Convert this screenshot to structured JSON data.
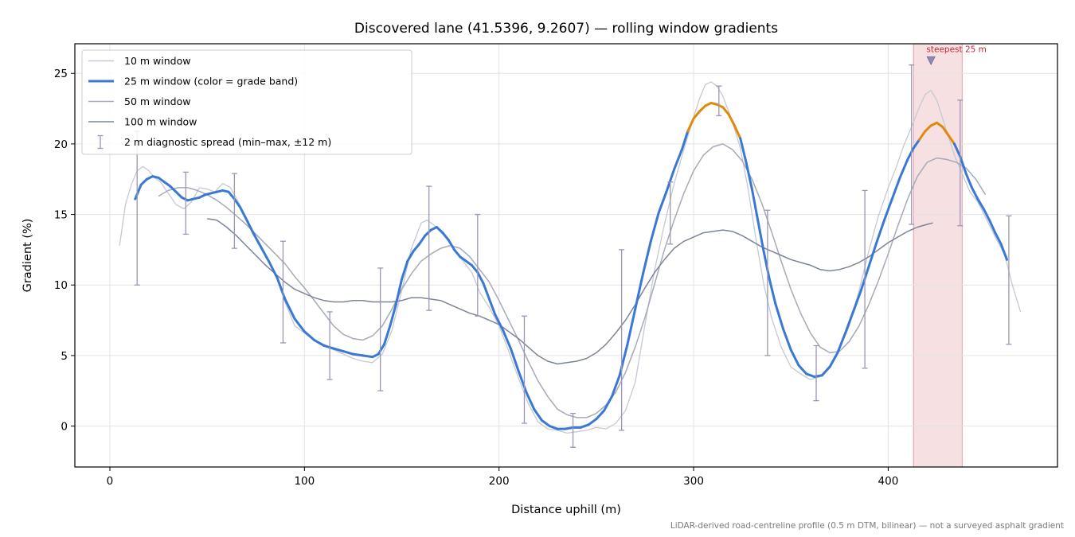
{
  "chart_data": {
    "type": "line",
    "title": "Discovered lane (41.5396, 9.2607) — rolling window gradients",
    "xlabel": "Distance uphill (m)",
    "ylabel": "Gradient (%)",
    "xlim": [
      -18,
      487
    ],
    "ylim": [
      -2.9,
      27.1
    ],
    "xticks": [
      0,
      100,
      200,
      300,
      400
    ],
    "yticks": [
      0,
      5,
      10,
      15,
      20,
      25
    ],
    "grid": true,
    "legend_position": "top-left",
    "footnote": "LiDAR-derived road-centreline profile (0.5 m DTM, bilinear) — not a surveyed asphalt gradient",
    "highlight": {
      "label": "steepest 25 m",
      "x_range": [
        413,
        438
      ],
      "marker": {
        "x": 422,
        "y": 25.9
      }
    },
    "grade_band_colors": {
      "normal": "#3a78d4",
      "steep": "#e08a0b",
      "threshold": 20
    },
    "series": [
      {
        "name": "10 m window",
        "color": "#c5c9d3",
        "x": [
          5,
          8,
          11,
          14,
          17,
          20,
          23,
          26,
          30,
          34,
          38,
          42,
          46,
          50,
          54,
          58,
          62,
          66,
          70,
          75,
          80,
          85,
          90,
          95,
          100,
          105,
          110,
          115,
          120,
          125,
          130,
          135,
          140,
          145,
          150,
          155,
          160,
          163,
          166,
          170,
          174,
          178,
          182,
          186,
          190,
          195,
          200,
          205,
          210,
          215,
          220,
          225,
          230,
          235,
          240,
          245,
          250,
          255,
          260,
          265,
          270,
          275,
          280,
          285,
          290,
          295,
          300,
          303,
          306,
          309,
          312,
          315,
          318,
          321,
          324,
          328,
          332,
          336,
          340,
          345,
          350,
          355,
          360,
          365,
          370,
          375,
          380,
          385,
          390,
          395,
          400,
          404,
          408,
          412,
          416,
          419,
          422,
          425,
          428,
          431,
          434,
          438,
          442,
          446,
          450,
          455,
          460,
          464,
          468
        ],
        "y": [
          12.8,
          15.7,
          17.1,
          18.1,
          18.4,
          18.1,
          17.6,
          17.3,
          16.5,
          15.7,
          15.4,
          15.9,
          16.9,
          16.8,
          16.6,
          17.2,
          16.9,
          15.9,
          14.7,
          13.4,
          12.1,
          10.8,
          8.8,
          7.1,
          6.6,
          6.1,
          5.8,
          5.4,
          5.1,
          4.8,
          4.6,
          4.5,
          5.1,
          6.8,
          9.6,
          12.6,
          14.4,
          14.6,
          14.3,
          13.9,
          13.1,
          12.3,
          11.6,
          10.9,
          9.5,
          8.4,
          7.1,
          5.3,
          3.4,
          1.6,
          0.3,
          -0.2,
          -0.3,
          -0.5,
          -0.4,
          -0.3,
          -0.1,
          -0.2,
          0.2,
          1.1,
          3.1,
          7.2,
          11.1,
          14.3,
          17.2,
          19.6,
          21.9,
          23.2,
          24.2,
          24.4,
          24.1,
          23.4,
          22.3,
          21.1,
          19.7,
          16.8,
          13.3,
          10.1,
          7.7,
          5.6,
          4.2,
          3.7,
          3.3,
          3.5,
          4.3,
          5.5,
          7.1,
          9.6,
          12.4,
          14.9,
          16.9,
          18.3,
          19.9,
          21.2,
          22.6,
          23.5,
          23.8,
          23.1,
          21.8,
          20.5,
          19.2,
          17.9,
          16.6,
          15.9,
          14.8,
          13.4,
          12.1,
          9.9,
          8.1
        ]
      },
      {
        "name": "25 m window (color = grade band)",
        "color": "#3a78d4",
        "x": [
          13,
          16,
          19,
          22,
          25,
          28,
          31,
          34,
          37,
          40,
          43,
          46,
          49,
          52,
          55,
          58,
          61,
          64,
          67,
          70,
          74,
          78,
          82,
          86,
          90,
          95,
          100,
          105,
          110,
          115,
          120,
          125,
          130,
          135,
          138,
          141,
          144,
          147,
          150,
          153,
          156,
          159,
          162,
          165,
          168,
          171,
          174,
          177,
          180,
          183,
          186,
          189,
          192,
          195,
          198,
          202,
          206,
          210,
          214,
          218,
          222,
          226,
          230,
          234,
          238,
          242,
          246,
          250,
          254,
          258,
          262,
          266,
          270,
          274,
          278,
          282,
          286,
          290,
          294,
          297,
          300,
          303,
          306,
          309,
          312,
          315,
          318,
          321,
          324,
          327,
          330,
          333,
          336,
          339,
          342,
          346,
          350,
          354,
          358,
          362,
          366,
          370,
          374,
          378,
          382,
          386,
          390,
          394,
          398,
          402,
          406,
          410,
          413,
          416,
          419,
          422,
          425,
          428,
          431,
          434,
          437,
          440,
          443,
          446,
          449,
          452,
          455,
          458,
          461
        ],
        "y": [
          16.1,
          17.1,
          17.5,
          17.7,
          17.6,
          17.3,
          17.0,
          16.6,
          16.2,
          16.0,
          16.1,
          16.2,
          16.4,
          16.5,
          16.6,
          16.7,
          16.6,
          16.1,
          15.5,
          14.7,
          13.6,
          12.6,
          11.6,
          10.5,
          9.0,
          7.6,
          6.7,
          6.1,
          5.7,
          5.5,
          5.3,
          5.1,
          5.0,
          4.9,
          5.1,
          5.8,
          7.1,
          8.6,
          10.4,
          11.7,
          12.4,
          12.9,
          13.5,
          13.9,
          14.1,
          13.7,
          13.2,
          12.5,
          12.0,
          11.7,
          11.4,
          10.9,
          10.1,
          9.0,
          7.9,
          6.8,
          5.5,
          3.9,
          2.4,
          1.2,
          0.4,
          0.0,
          -0.2,
          -0.2,
          -0.1,
          -0.1,
          0.1,
          0.5,
          1.1,
          2.1,
          3.6,
          5.8,
          8.3,
          10.8,
          13.1,
          15.1,
          16.6,
          18.2,
          19.6,
          20.9,
          21.8,
          22.3,
          22.7,
          22.9,
          22.8,
          22.6,
          22.1,
          21.3,
          20.4,
          18.7,
          16.8,
          14.6,
          12.4,
          10.4,
          8.7,
          6.9,
          5.4,
          4.3,
          3.7,
          3.5,
          3.6,
          4.2,
          5.2,
          6.6,
          8.1,
          9.6,
          11.3,
          13.0,
          14.6,
          16.1,
          17.6,
          18.9,
          19.7,
          20.3,
          20.9,
          21.3,
          21.5,
          21.2,
          20.6,
          20.0,
          19.1,
          17.9,
          16.9,
          16.1,
          15.4,
          14.6,
          13.7,
          12.9,
          11.8
        ]
      },
      {
        "name": "50 m window",
        "color": "#a3aab8",
        "x": [
          25,
          30,
          35,
          40,
          45,
          50,
          55,
          60,
          65,
          70,
          75,
          80,
          85,
          90,
          95,
          100,
          105,
          110,
          115,
          120,
          125,
          130,
          135,
          140,
          145,
          150,
          155,
          160,
          165,
          170,
          175,
          180,
          185,
          190,
          195,
          200,
          205,
          210,
          215,
          220,
          225,
          230,
          235,
          240,
          245,
          250,
          255,
          260,
          265,
          270,
          275,
          280,
          285,
          290,
          295,
          300,
          305,
          310,
          315,
          320,
          325,
          330,
          335,
          340,
          345,
          350,
          355,
          360,
          365,
          370,
          375,
          380,
          385,
          390,
          395,
          400,
          405,
          410,
          415,
          420,
          425,
          430,
          435,
          440,
          445,
          450
        ],
        "y": [
          16.3,
          16.7,
          16.9,
          16.9,
          16.7,
          16.4,
          16.0,
          15.5,
          14.9,
          14.3,
          13.6,
          12.9,
          12.2,
          11.5,
          10.6,
          9.8,
          8.9,
          8.0,
          7.1,
          6.5,
          6.2,
          6.1,
          6.4,
          7.1,
          8.3,
          9.7,
          10.8,
          11.7,
          12.2,
          12.6,
          12.8,
          12.6,
          12.0,
          11.1,
          10.2,
          8.9,
          7.5,
          6.1,
          4.6,
          3.2,
          2.1,
          1.2,
          0.8,
          0.6,
          0.6,
          0.9,
          1.5,
          2.4,
          3.8,
          5.6,
          7.7,
          10.1,
          12.5,
          14.6,
          16.5,
          18.1,
          19.2,
          19.8,
          20.0,
          19.6,
          18.8,
          17.5,
          15.8,
          13.8,
          11.7,
          9.7,
          8.0,
          6.6,
          5.6,
          5.2,
          5.3,
          6.0,
          7.1,
          8.6,
          10.3,
          12.2,
          14.2,
          16.1,
          17.7,
          18.7,
          19.0,
          18.9,
          18.7,
          18.3,
          17.5,
          16.4
        ]
      },
      {
        "name": "100 m window",
        "color": "#7b8597",
        "x": [
          50,
          55,
          60,
          65,
          70,
          75,
          80,
          85,
          90,
          95,
          100,
          105,
          110,
          115,
          120,
          125,
          130,
          135,
          140,
          145,
          150,
          155,
          160,
          165,
          170,
          175,
          180,
          185,
          190,
          195,
          200,
          205,
          210,
          215,
          220,
          225,
          230,
          235,
          240,
          245,
          250,
          255,
          260,
          265,
          270,
          275,
          280,
          285,
          290,
          295,
          300,
          305,
          310,
          315,
          320,
          325,
          330,
          335,
          340,
          345,
          350,
          355,
          360,
          365,
          370,
          375,
          380,
          385,
          390,
          395,
          400,
          405,
          410,
          415,
          420,
          423
        ],
        "y": [
          14.7,
          14.6,
          14.1,
          13.5,
          12.8,
          12.1,
          11.4,
          10.8,
          10.2,
          9.7,
          9.4,
          9.1,
          8.9,
          8.8,
          8.8,
          8.9,
          8.9,
          8.8,
          8.8,
          8.8,
          8.9,
          9.1,
          9.1,
          9.0,
          8.9,
          8.6,
          8.3,
          8.0,
          7.8,
          7.5,
          7.2,
          6.7,
          6.2,
          5.6,
          5.0,
          4.6,
          4.4,
          4.5,
          4.6,
          4.8,
          5.2,
          5.8,
          6.6,
          7.5,
          8.6,
          9.8,
          10.9,
          11.8,
          12.6,
          13.1,
          13.4,
          13.7,
          13.8,
          13.9,
          13.8,
          13.5,
          13.1,
          12.7,
          12.4,
          12.1,
          11.8,
          11.6,
          11.4,
          11.1,
          11.0,
          11.1,
          11.3,
          11.6,
          12.0,
          12.5,
          13.0,
          13.4,
          13.8,
          14.1,
          14.3,
          14.4
        ]
      },
      {
        "name": "2 m diagnostic spread (min–max, ±12 m)",
        "color": "#9b96b6",
        "x": [
          14,
          39,
          64,
          89,
          113,
          139,
          164,
          189,
          213,
          238,
          263,
          288,
          313,
          338,
          363,
          388,
          412,
          437,
          462
        ],
        "low": [
          10.0,
          13.6,
          12.6,
          5.9,
          3.3,
          2.5,
          8.2,
          7.8,
          0.2,
          -1.5,
          -0.3,
          12.9,
          22.0,
          5.0,
          1.8,
          4.1,
          14.3,
          14.2,
          5.8
        ],
        "high": [
          20.9,
          18.0,
          17.9,
          13.1,
          8.1,
          11.2,
          17.0,
          15.0,
          7.8,
          0.9,
          12.5,
          17.3,
          24.1,
          15.3,
          5.7,
          16.7,
          25.6,
          23.1,
          14.9
        ],
        "mid": [
          16.1,
          15.9,
          16.6,
          10.1,
          6.1,
          5.0,
          14.0,
          11.4,
          4.2,
          -0.2,
          1.1,
          15.3,
          23.0,
          10.8,
          3.5,
          9.7,
          20.2,
          18.4,
          12.9
        ]
      }
    ]
  }
}
